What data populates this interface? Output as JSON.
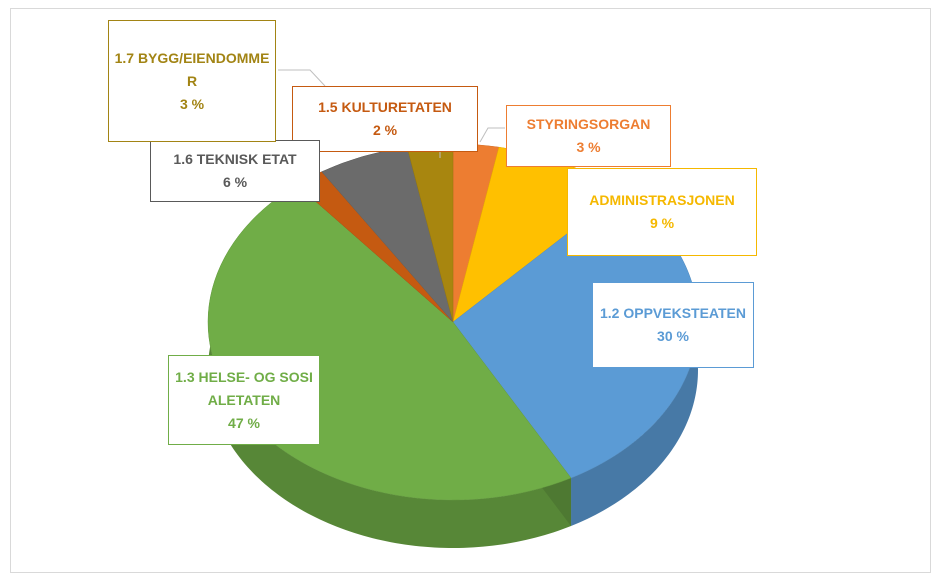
{
  "chart_data": {
    "type": "pie",
    "categories": [
      "STYRINGSORGAN",
      "ADMINISTRASJONEN",
      "1.2 OPPVEKSTEATEN",
      "1.3 HELSE- OG SOSIALETATEN",
      "1.5 KULTURETATEN",
      "1.6 TEKNISK ETAT",
      "1.7 BYGG/EIENDOMMER"
    ],
    "values": [
      3,
      9,
      30,
      47,
      2,
      6,
      3
    ],
    "value_labels": [
      "3 %",
      "9 %",
      "30 %",
      "47 %",
      "2 %",
      "6 %",
      "3 %"
    ],
    "colors": [
      "#ed7d31",
      "#ffc000",
      "#5b9bd5",
      "#70ad47",
      "#c55a11",
      "#6b6b6b",
      "#a8860f"
    ]
  }
}
